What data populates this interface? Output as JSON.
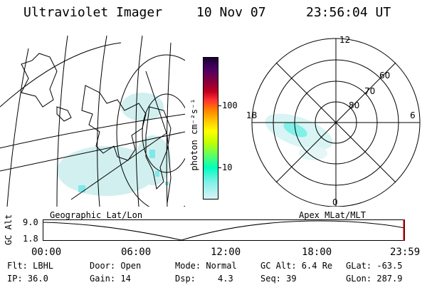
{
  "header": {
    "title": "Ultraviolet Imager",
    "date": "10 Nov 07",
    "time": "23:56:04 UT"
  },
  "map": {
    "label": "Geographic Lat/Lon"
  },
  "colorbar": {
    "unit_label": "photon cm⁻²s⁻¹",
    "tick_labels": [
      "100",
      "10"
    ],
    "colors": [
      "#1a0033",
      "#4a0066",
      "#800040",
      "#c00020",
      "#ff3030",
      "#ff8000",
      "#ffc000",
      "#ffff00",
      "#c0ff00",
      "#80ff40",
      "#40ff80",
      "#00ffc0",
      "#80f0e8",
      "#d8f4f4"
    ]
  },
  "polar": {
    "label": "Apex MLat/MLT",
    "mlt_labels": {
      "top": "12",
      "left": "18",
      "right": "6",
      "bottom": "0"
    },
    "lat_labels": [
      "60",
      "70",
      "80"
    ]
  },
  "timeline": {
    "ylabel": "GC Alt",
    "y_top": "9.0",
    "y_bottom": "1.8",
    "x_labels": [
      "00:00",
      "06:00",
      "12:00",
      "18:00",
      "23:59"
    ]
  },
  "info": {
    "row1": {
      "flt": "Flt: LBHL",
      "door": "Door: Open",
      "mode": "Mode: Normal",
      "gcalt": "GC Alt: 6.4 Re",
      "glat": "GLat: -63.5"
    },
    "row2": {
      "ip": "IP: 36.0",
      "gain": "Gain: 14",
      "dsp_label": "Dsp:",
      "dsp_value": "4.3",
      "seq": "Seq: 39",
      "glon": "GLon: 287.9"
    }
  }
}
